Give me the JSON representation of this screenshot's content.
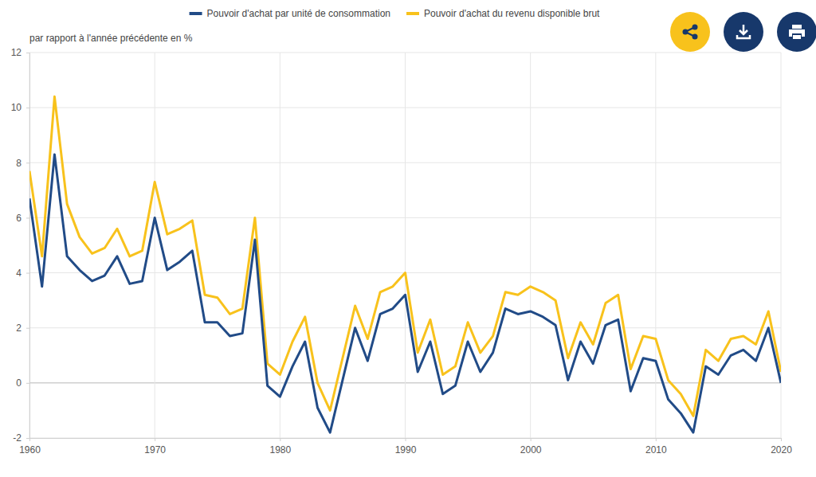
{
  "chart_data": {
    "type": "line",
    "y_label": "par rapport à l'année précédente en %",
    "x": [
      1960,
      1961,
      1962,
      1963,
      1964,
      1965,
      1966,
      1967,
      1968,
      1969,
      1970,
      1971,
      1972,
      1973,
      1974,
      1975,
      1976,
      1977,
      1978,
      1979,
      1980,
      1981,
      1982,
      1983,
      1984,
      1985,
      1986,
      1987,
      1988,
      1989,
      1990,
      1991,
      1992,
      1993,
      1994,
      1995,
      1996,
      1997,
      1998,
      1999,
      2000,
      2001,
      2002,
      2003,
      2004,
      2005,
      2006,
      2007,
      2008,
      2009,
      2010,
      2011,
      2012,
      2013,
      2014,
      2015,
      2016,
      2017,
      2018,
      2019,
      2020
    ],
    "series": [
      {
        "name": "Pouvoir d'achat par unité de consommation",
        "color": "#214b87",
        "values": [
          6.7,
          3.5,
          8.3,
          4.6,
          4.1,
          3.7,
          3.9,
          4.6,
          3.6,
          3.7,
          6.0,
          4.1,
          4.4,
          4.8,
          2.2,
          2.2,
          1.7,
          1.8,
          5.2,
          -0.1,
          -0.5,
          0.6,
          1.5,
          -0.9,
          -1.8,
          0.1,
          2.0,
          0.8,
          2.5,
          2.7,
          3.2,
          0.4,
          1.5,
          -0.4,
          -0.1,
          1.5,
          0.4,
          1.1,
          2.7,
          2.5,
          2.6,
          2.4,
          2.1,
          0.1,
          1.5,
          0.7,
          2.1,
          2.3,
          -0.3,
          0.9,
          0.8,
          -0.6,
          -1.1,
          -1.8,
          0.6,
          0.3,
          1.0,
          1.2,
          0.8,
          2.0,
          0.0
        ]
      },
      {
        "name": "Pouvoir d'achat du revenu disponible brut",
        "color": "#f8c21c",
        "values": [
          7.7,
          4.6,
          10.4,
          6.5,
          5.3,
          4.7,
          4.9,
          5.6,
          4.6,
          4.8,
          7.3,
          5.4,
          5.6,
          5.9,
          3.2,
          3.1,
          2.5,
          2.7,
          6.0,
          0.7,
          0.3,
          1.5,
          2.4,
          0.0,
          -1.0,
          0.9,
          2.8,
          1.6,
          3.3,
          3.5,
          4.0,
          1.1,
          2.3,
          0.3,
          0.6,
          2.2,
          1.1,
          1.7,
          3.3,
          3.2,
          3.5,
          3.3,
          3.0,
          0.9,
          2.2,
          1.4,
          2.9,
          3.2,
          0.5,
          1.7,
          1.6,
          0.1,
          -0.4,
          -1.2,
          1.2,
          0.8,
          1.6,
          1.7,
          1.4,
          2.6,
          0.4
        ]
      }
    ],
    "xlim": [
      1960,
      2020
    ],
    "xticks": [
      1960,
      1970,
      1980,
      1990,
      2000,
      2010,
      2020
    ],
    "ylim": [
      -2,
      12
    ],
    "yticks": [
      -2,
      0,
      2,
      4,
      6,
      8,
      10,
      12
    ],
    "grid": true,
    "legend": "top"
  }
}
